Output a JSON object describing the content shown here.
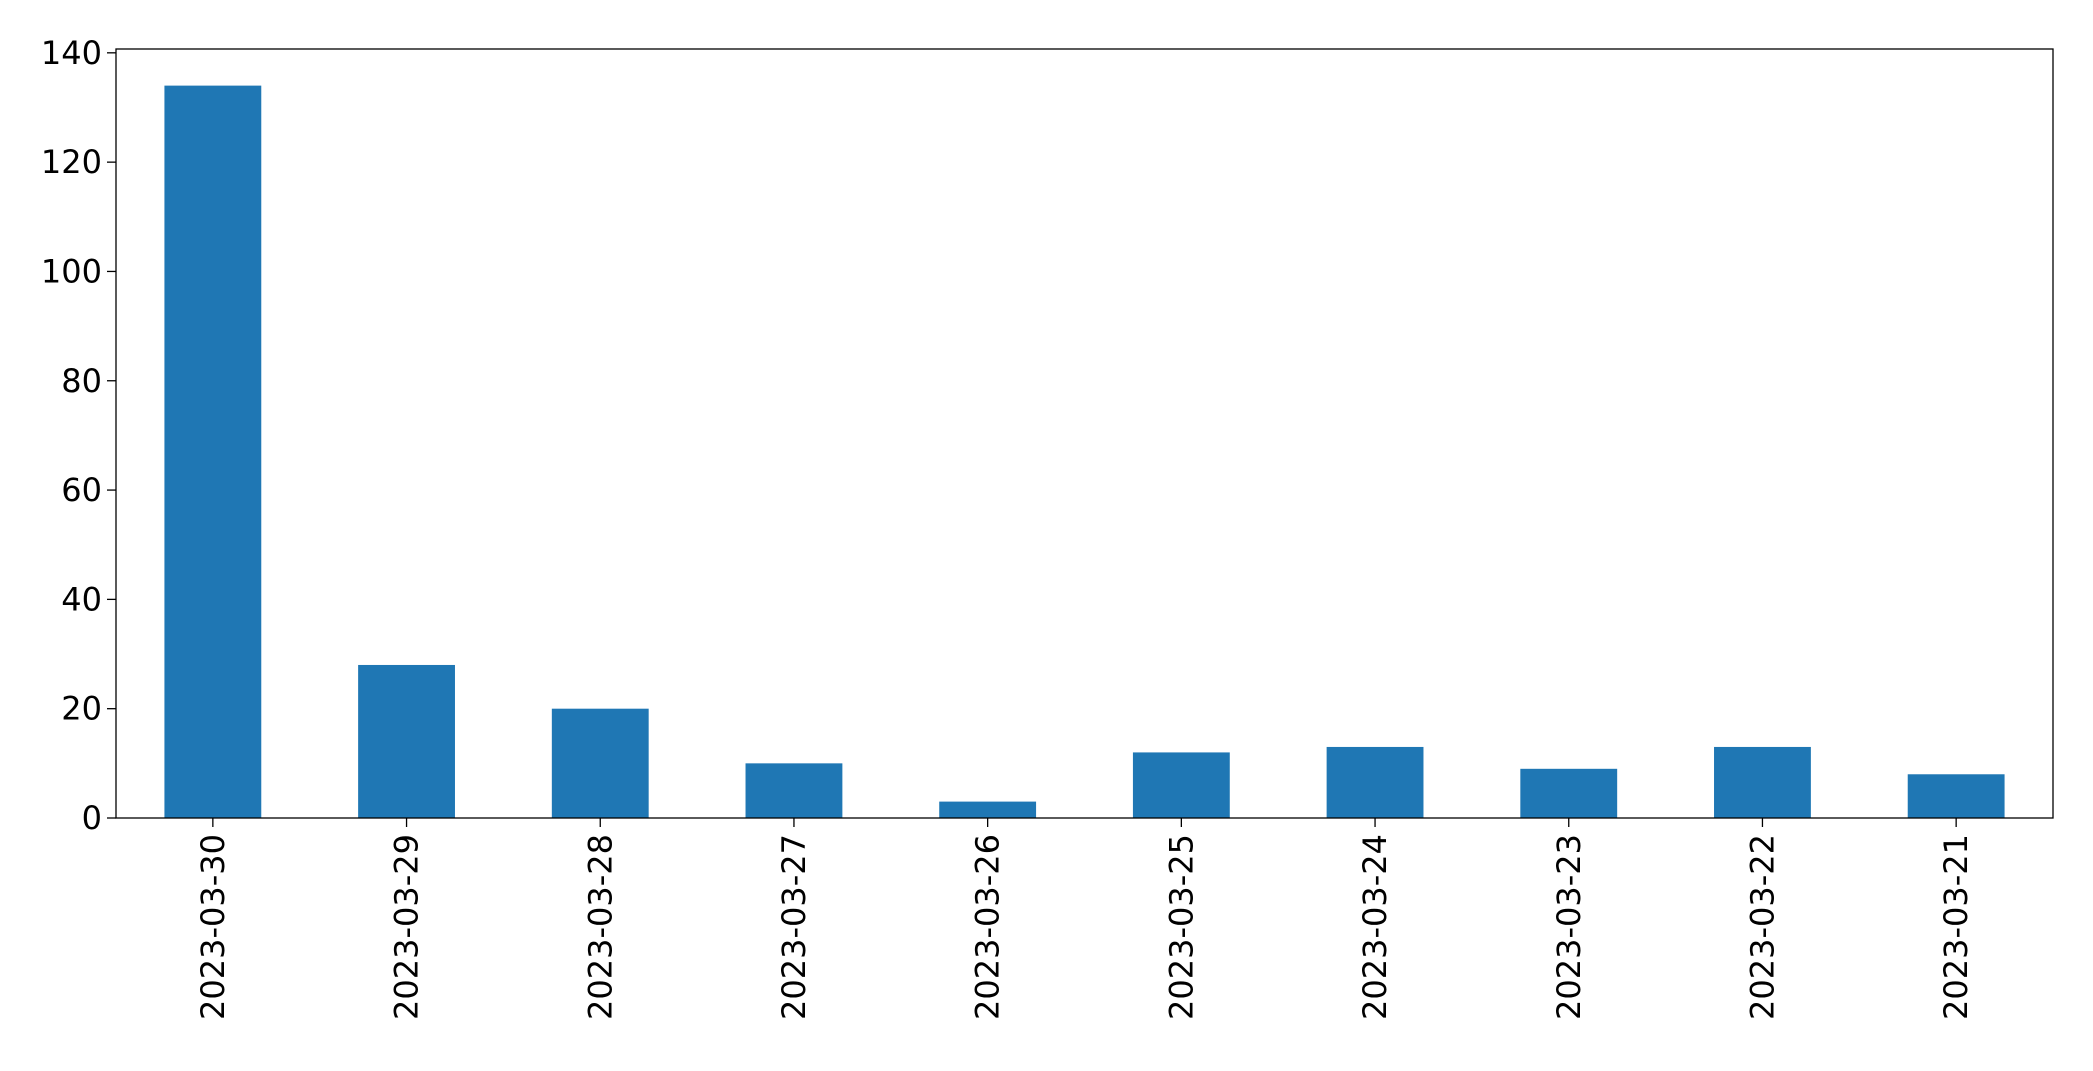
{
  "chart_data": {
    "type": "bar",
    "categories": [
      "2023-03-30",
      "2023-03-29",
      "2023-03-28",
      "2023-03-27",
      "2023-03-26",
      "2023-03-25",
      "2023-03-24",
      "2023-03-23",
      "2023-03-22",
      "2023-03-21"
    ],
    "values": [
      134,
      28,
      20,
      10,
      3,
      12,
      13,
      9,
      13,
      8
    ],
    "color": "#1f77b4",
    "ylim": [
      0,
      140.7
    ],
    "yticks": [
      0,
      20,
      40,
      60,
      80,
      100,
      120,
      140
    ],
    "grid": false
  }
}
